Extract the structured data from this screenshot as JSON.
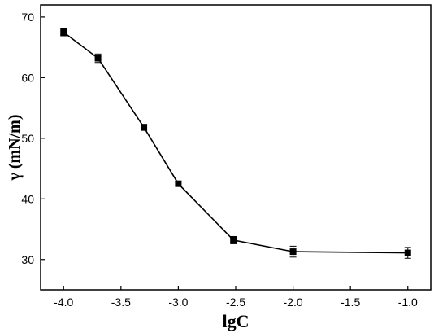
{
  "chart_data": {
    "type": "line",
    "title": "",
    "xlabel": "lgC",
    "ylabel": "γ (mN/m)",
    "xlim": [
      -4.2,
      -0.8
    ],
    "ylim": [
      25,
      72
    ],
    "xticks": [
      -4.0,
      -3.5,
      -3.0,
      -2.5,
      -2.0,
      -1.5,
      -1.0
    ],
    "xtick_labels": [
      "-4.0",
      "-3.5",
      "-3.0",
      "-2.5",
      "-2.0",
      "-1.5",
      "-1.0"
    ],
    "yticks": [
      30,
      40,
      50,
      60,
      70
    ],
    "ytick_labels": [
      "30",
      "40",
      "50",
      "60",
      "70"
    ],
    "grid": false,
    "marker": "square",
    "series": [
      {
        "x": [
          -4.0,
          -3.7,
          -3.3,
          -3.0,
          -2.52,
          -2.0,
          -1.0
        ],
        "y": [
          67.5,
          63.2,
          51.8,
          42.5,
          33.2,
          31.3,
          31.1
        ],
        "error": [
          0.6,
          0.7,
          0.5,
          0.4,
          0.6,
          0.9,
          0.9
        ],
        "color": "#000000"
      }
    ]
  }
}
